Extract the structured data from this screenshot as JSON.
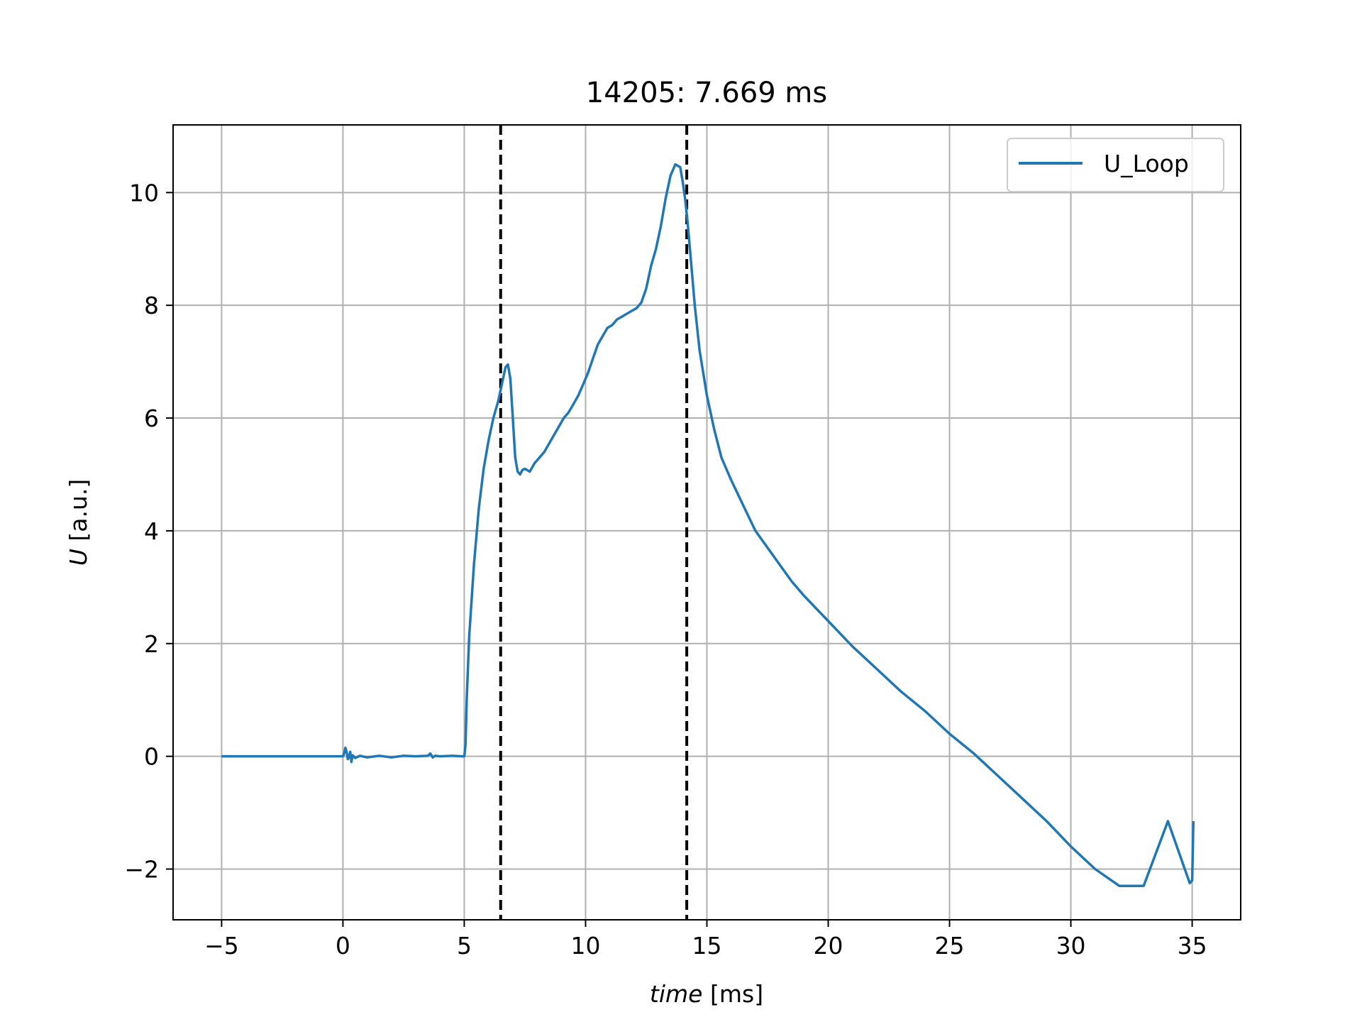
{
  "chart_data": {
    "type": "line",
    "title": "14205: 7.669 ms",
    "xlabel": {
      "var": "time",
      "unit": " [ms]"
    },
    "ylabel": {
      "var": "U",
      "unit": " [a.u.]"
    },
    "xlim": [
      -7,
      37
    ],
    "ylim": [
      -2.9,
      11.2
    ],
    "xticks": [
      -5,
      0,
      5,
      10,
      15,
      20,
      25,
      30,
      35
    ],
    "xtick_labels": [
      "−5",
      "0",
      "5",
      "10",
      "15",
      "20",
      "25",
      "30",
      "35"
    ],
    "yticks": [
      -2,
      0,
      2,
      4,
      6,
      8,
      10
    ],
    "ytick_labels": [
      "−2",
      "0",
      "2",
      "4",
      "6",
      "8",
      "10"
    ],
    "grid": true,
    "legend": "top-right",
    "vlines": [
      6.5,
      14.17
    ],
    "vline_color": "#000000",
    "series": [
      {
        "name": "U_Loop",
        "color": "#1f77b4",
        "x": [
          -5,
          0,
          0.05,
          0.1,
          0.15,
          0.2,
          0.25,
          0.3,
          0.35,
          0.4,
          0.5,
          0.7,
          1.0,
          1.5,
          2.0,
          2.5,
          3.0,
          3.5,
          3.6,
          3.7,
          3.8,
          4.0,
          4.5,
          4.9,
          5.0,
          5.05,
          5.1,
          5.2,
          5.4,
          5.6,
          5.8,
          6.0,
          6.2,
          6.4,
          6.5,
          6.6,
          6.7,
          6.8,
          6.9,
          7.0,
          7.1,
          7.2,
          7.3,
          7.4,
          7.5,
          7.7,
          7.9,
          8.1,
          8.3,
          8.5,
          8.7,
          8.9,
          9.1,
          9.3,
          9.5,
          9.7,
          9.9,
          10.1,
          10.3,
          10.5,
          10.7,
          10.9,
          11.1,
          11.3,
          11.5,
          11.7,
          11.9,
          12.1,
          12.3,
          12.5,
          12.7,
          12.9,
          13.1,
          13.3,
          13.5,
          13.7,
          13.9,
          14.0,
          14.1,
          14.2,
          14.3,
          14.5,
          14.7,
          15.0,
          15.3,
          15.6,
          16.0,
          16.5,
          17.0,
          17.5,
          18.0,
          18.5,
          19.0,
          20.0,
          21.0,
          22.0,
          23.0,
          24.0,
          25.0,
          26.0,
          27.0,
          28.0,
          29.0,
          30.0,
          31.0,
          32.0,
          33.0,
          34.0,
          34.9,
          35.0,
          35.05
        ],
        "y": [
          0,
          0,
          0.05,
          0.15,
          0.08,
          -0.05,
          -0.02,
          0.08,
          -0.1,
          0.02,
          -0.03,
          0.01,
          -0.02,
          0.01,
          -0.02,
          0.01,
          0.0,
          0.01,
          0.05,
          -0.02,
          0.01,
          0.0,
          0.01,
          0.0,
          0.0,
          0.2,
          1.0,
          2.1,
          3.4,
          4.4,
          5.1,
          5.6,
          6.0,
          6.3,
          6.5,
          6.7,
          6.9,
          6.95,
          6.7,
          6.0,
          5.3,
          5.05,
          5.0,
          5.08,
          5.1,
          5.05,
          5.2,
          5.3,
          5.4,
          5.55,
          5.7,
          5.85,
          6.0,
          6.1,
          6.25,
          6.4,
          6.6,
          6.8,
          7.05,
          7.3,
          7.45,
          7.6,
          7.65,
          7.75,
          7.8,
          7.85,
          7.9,
          7.95,
          8.05,
          8.3,
          8.7,
          9.0,
          9.4,
          9.9,
          10.3,
          10.5,
          10.45,
          10.2,
          9.9,
          9.5,
          9.0,
          8.0,
          7.2,
          6.4,
          5.8,
          5.3,
          4.9,
          4.45,
          4.0,
          3.7,
          3.4,
          3.1,
          2.85,
          2.4,
          1.95,
          1.55,
          1.15,
          0.8,
          0.4,
          0.05,
          -0.35,
          -0.75,
          -1.15,
          -1.6,
          -2.0,
          -2.3,
          -2.3,
          -1.15,
          -2.25,
          -2.2,
          -1.15
        ]
      }
    ]
  }
}
